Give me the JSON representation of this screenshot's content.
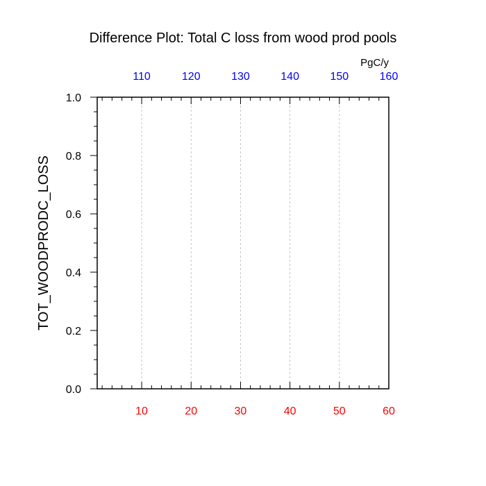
{
  "chart_data": {
    "type": "line",
    "title": "Difference Plot: Total C loss from wood prod pools",
    "ylabel": "TOT_WOODPRODC_LOSS",
    "units_label": "PgC/y",
    "ylim": [
      0,
      1
    ],
    "yticks": [
      "0.0",
      "0.2",
      "0.4",
      "0.6",
      "0.8",
      "1.0"
    ],
    "x_bottom": {
      "xlim": [
        1,
        60
      ],
      "ticks": [
        10,
        20,
        30,
        40,
        50,
        60
      ],
      "tick_labels": [
        "10",
        "20",
        "30",
        "40",
        "50",
        "60"
      ],
      "color": "#ff0000"
    },
    "x_top": {
      "xlim": [
        101,
        160
      ],
      "ticks": [
        110,
        120,
        130,
        140,
        150,
        160
      ],
      "tick_labels": [
        "110",
        "120",
        "130",
        "140",
        "150",
        "160"
      ],
      "color": "#0000ff"
    },
    "grid": "vertical-dashed",
    "series": []
  }
}
